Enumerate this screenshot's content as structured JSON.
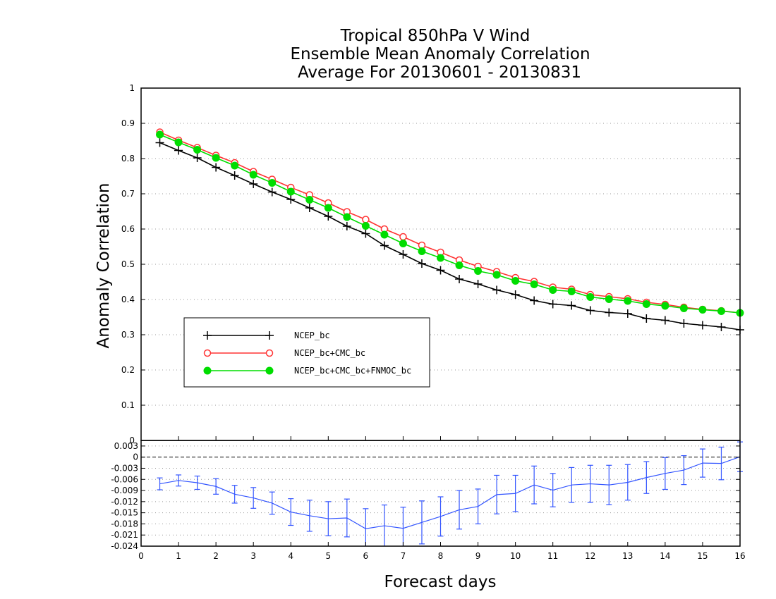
{
  "chart_data": [
    {
      "type": "line",
      "title": [
        "Tropical 850hPa V Wind",
        "Ensemble Mean Anomaly Correlation",
        "Average For 20130601 - 20130831"
      ],
      "xlabel": "Forecast days",
      "ylabel": "Anomaly Correlation",
      "xlim": [
        0,
        16
      ],
      "ylim": [
        0,
        1
      ],
      "xticks": [
        0,
        1,
        2,
        3,
        4,
        5,
        6,
        7,
        8,
        9,
        10,
        11,
        12,
        13,
        14,
        15,
        16
      ],
      "yticks": [
        "0",
        "0.1",
        "0.2",
        "0.3",
        "0.4",
        "0.5",
        "0.6",
        "0.7",
        "0.8",
        "0.9",
        "1"
      ],
      "grid": "horizontal dotted",
      "legend_position": "lower-left",
      "x": [
        0.5,
        1,
        1.5,
        2,
        2.5,
        3,
        3.5,
        4,
        4.5,
        5,
        5.5,
        6,
        6.5,
        7,
        7.5,
        8,
        8.5,
        9,
        9.5,
        10,
        10.5,
        11,
        11.5,
        12,
        12.5,
        13,
        13.5,
        14,
        14.5,
        15,
        15.5,
        16
      ],
      "series": [
        {
          "name": "NCEP_bc",
          "color": "#000000",
          "marker": "plus",
          "values": [
            0.845,
            0.823,
            0.802,
            0.775,
            0.752,
            0.728,
            0.705,
            0.684,
            0.66,
            0.636,
            0.608,
            0.587,
            0.553,
            0.528,
            0.502,
            0.483,
            0.458,
            0.444,
            0.427,
            0.414,
            0.397,
            0.387,
            0.383,
            0.369,
            0.363,
            0.36,
            0.346,
            0.341,
            0.332,
            0.327,
            0.322,
            0.314
          ]
        },
        {
          "name": "NCEP_bc+CMC_bc",
          "color": "#ff3333",
          "marker": "open-circle",
          "values": [
            0.875,
            0.852,
            0.831,
            0.809,
            0.788,
            0.763,
            0.741,
            0.718,
            0.697,
            0.674,
            0.649,
            0.627,
            0.6,
            0.578,
            0.554,
            0.534,
            0.512,
            0.494,
            0.479,
            0.462,
            0.451,
            0.435,
            0.429,
            0.414,
            0.408,
            0.402,
            0.392,
            0.386,
            0.378,
            0.372,
            0.368,
            0.362
          ]
        },
        {
          "name": "NCEP_bc+CMC_bc+FNMOC_bc",
          "color": "#00dd00",
          "marker": "filled-circle",
          "values": [
            0.868,
            0.846,
            0.825,
            0.802,
            0.78,
            0.754,
            0.731,
            0.706,
            0.683,
            0.66,
            0.634,
            0.609,
            0.584,
            0.559,
            0.537,
            0.518,
            0.497,
            0.481,
            0.47,
            0.453,
            0.443,
            0.427,
            0.423,
            0.407,
            0.401,
            0.396,
            0.387,
            0.382,
            0.375,
            0.371,
            0.367,
            0.362
          ]
        }
      ]
    },
    {
      "type": "line",
      "title": "",
      "xlim": [
        0,
        16
      ],
      "ylim": [
        -0.024,
        0.0045
      ],
      "yticks": [
        "0.003",
        "0",
        "-0.003",
        "-0.006",
        "-0.009",
        "-0.012",
        "-0.015",
        "-0.018",
        "-0.021",
        "-0.024"
      ],
      "grid": "horizontal dotted",
      "reference_line": 0,
      "x": [
        0.5,
        1,
        1.5,
        2,
        2.5,
        3,
        3.5,
        4,
        4.5,
        5,
        5.5,
        6,
        6.5,
        7,
        7.5,
        8,
        8.5,
        9,
        9.5,
        10,
        10.5,
        11,
        11.5,
        12,
        12.5,
        13,
        13.5,
        14,
        14.5,
        15,
        15.5,
        16
      ],
      "series": [
        {
          "color": "#3355ff",
          "marker": "error-bar",
          "values": [
            -0.0072,
            -0.0063,
            -0.0069,
            -0.0079,
            -0.01,
            -0.011,
            -0.0124,
            -0.0148,
            -0.0158,
            -0.0166,
            -0.0164,
            -0.0193,
            -0.0185,
            -0.0192,
            -0.0176,
            -0.016,
            -0.0142,
            -0.0133,
            -0.0101,
            -0.0098,
            -0.0075,
            -0.0089,
            -0.0075,
            -0.0072,
            -0.0075,
            -0.0068,
            -0.0055,
            -0.0044,
            -0.0035,
            -0.0016,
            -0.0017,
            0.0001
          ],
          "error": [
            0.0016,
            0.0015,
            0.0018,
            0.0021,
            0.0024,
            0.0028,
            0.003,
            0.0036,
            0.0042,
            0.0046,
            0.0051,
            0.0054,
            0.0056,
            0.0057,
            0.0058,
            0.0053,
            0.0052,
            0.0047,
            0.0052,
            0.0049,
            0.0051,
            0.0045,
            0.0047,
            0.005,
            0.0053,
            0.0048,
            0.0043,
            0.0043,
            0.0039,
            0.0038,
            0.0044,
            0.004
          ]
        }
      ]
    }
  ]
}
